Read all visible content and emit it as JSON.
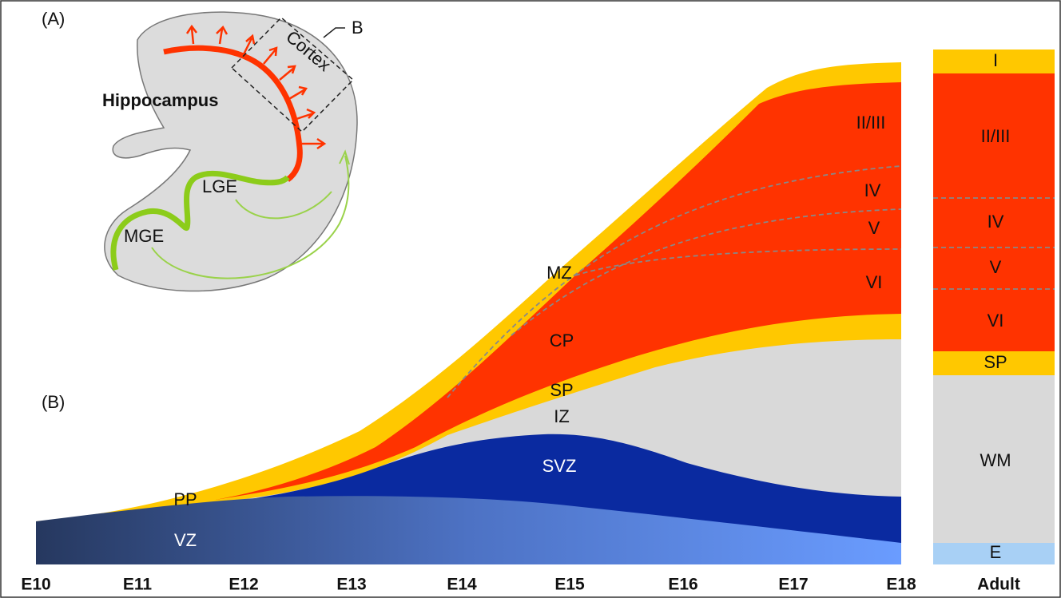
{
  "panel_a": {
    "label": "(A)",
    "box_label": "B",
    "cortex": "Cortex",
    "hippocampus": "Hippocampus",
    "lge": "LGE",
    "mge": "MGE"
  },
  "panel_b": {
    "label": "(B)",
    "zones": {
      "mz": "MZ",
      "cp": "CP",
      "sp": "SP",
      "iz": "IZ",
      "svz": "SVZ",
      "pp": "PP",
      "vz": "VZ"
    },
    "layers": [
      "II/III",
      "IV",
      "V",
      "VI"
    ],
    "timeline": [
      "E10",
      "E11",
      "E12",
      "E13",
      "E14",
      "E15",
      "E16",
      "E17",
      "E18"
    ],
    "adult": {
      "label": "Adult",
      "layers": [
        "I",
        "II/III",
        "IV",
        "V",
        "VI",
        "SP",
        "WM",
        "E"
      ]
    }
  }
}
